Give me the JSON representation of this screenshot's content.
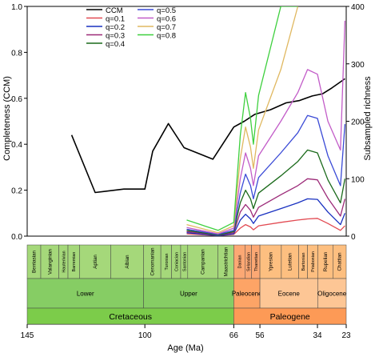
{
  "chart_data": {
    "type": "line",
    "xlabel": "Age (Ma)",
    "ylabel_left": "Completeness (CCM)",
    "ylabel_right": "Subsampled richness",
    "x_ticks": [
      145,
      100,
      66,
      56,
      34,
      23
    ],
    "x_range": [
      145,
      23
    ],
    "y_left_ticks": [
      "0.0",
      "0.2",
      "0.4",
      "0.6",
      "0.8",
      "1.0"
    ],
    "y_left_range": [
      0,
      1
    ],
    "y_right_ticks": [
      "0",
      "100",
      "200",
      "300",
      "400"
    ],
    "y_right_range": [
      0,
      400
    ],
    "legend_position": "top-left",
    "series": [
      {
        "name": "CCM",
        "axis": "left",
        "color": "#000000",
        "x": [
          128,
          119,
          108,
          100,
          97,
          91,
          85,
          74,
          66,
          62,
          58,
          52,
          46,
          41,
          36,
          32,
          28.5,
          23.5
        ],
        "y": [
          0.44,
          0.19,
          0.205,
          0.205,
          0.37,
          0.49,
          0.385,
          0.335,
          0.475,
          0.5,
          0.53,
          0.55,
          0.58,
          0.59,
          0.61,
          0.62,
          0.645,
          0.685
        ]
      },
      {
        "name": "q=0.1",
        "axis": "right",
        "color": "#e24a52",
        "x": [
          84,
          72,
          66,
          63.5,
          61.5,
          59.6,
          58.5,
          56.5,
          48,
          41.5,
          37.8,
          34,
          30,
          25.2,
          23.5
        ],
        "y": [
          4,
          1,
          3,
          14,
          20,
          16,
          11,
          18,
          24,
          28,
          30,
          31,
          22,
          10,
          18
        ]
      },
      {
        "name": "q=0.2",
        "axis": "right",
        "color": "#1830c0",
        "x": [
          84,
          72,
          66,
          63.5,
          61.5,
          59.6,
          58.5,
          56.5,
          48,
          41.5,
          37.8,
          34,
          30,
          25.2,
          23.5
        ],
        "y": [
          6,
          1,
          4,
          28,
          38,
          30,
          22,
          35,
          48,
          58,
          65,
          64,
          42,
          20,
          40
        ]
      },
      {
        "name": "q=0.3",
        "axis": "right",
        "color": "#9c2a78",
        "x": [
          84,
          72,
          66,
          63.5,
          61.5,
          59.6,
          58.5,
          56.5,
          48,
          41.5,
          37.8,
          34,
          30,
          25.2,
          23.5
        ],
        "y": [
          8,
          2,
          6,
          42,
          55,
          45,
          33,
          50,
          72,
          88,
          100,
          98,
          66,
          35,
          65
        ]
      },
      {
        "name": "q=0.4",
        "axis": "right",
        "color": "#1a6a1a",
        "x": [
          84,
          72,
          66,
          63.5,
          61.5,
          59.6,
          58.5,
          56.5,
          48,
          41.5,
          37.8,
          34,
          30,
          25.2,
          23.5
        ],
        "y": [
          10,
          2,
          8,
          58,
          80,
          65,
          48,
          75,
          105,
          130,
          150,
          145,
          98,
          58,
          100
        ]
      },
      {
        "name": "q=0.5",
        "axis": "right",
        "color": "#3a4ad6",
        "x": [
          84,
          72,
          66,
          63.5,
          61.5,
          59.6,
          58.5,
          56.5,
          48,
          41.5,
          37.8,
          34,
          30,
          25.2,
          23.5
        ],
        "y": [
          12,
          3,
          10,
          75,
          108,
          88,
          65,
          102,
          145,
          180,
          210,
          205,
          140,
          88,
          195
        ]
      },
      {
        "name": "q=0.6",
        "axis": "right",
        "color": "#c25cc8",
        "x": [
          84,
          72,
          66,
          63.5,
          61.5,
          59.6,
          58.5,
          56.5,
          48,
          41.5,
          37.8,
          34,
          30,
          25.2,
          23.5
        ],
        "y": [
          15,
          4,
          14,
          100,
          145,
          118,
          88,
          140,
          200,
          250,
          290,
          282,
          200,
          150,
          375
        ]
      },
      {
        "name": "q=0.7",
        "axis": "right",
        "color": "#e0b860",
        "x": [
          84,
          72,
          66,
          63.5,
          61.5,
          59.6,
          58.5,
          56.5,
          48,
          41.5
        ],
        "y": [
          20,
          6,
          18,
          135,
          190,
          155,
          118,
          185,
          290,
          400
        ]
      },
      {
        "name": "q=0.8",
        "axis": "right",
        "color": "#3ed03e",
        "x": [
          84,
          72,
          66,
          63.5,
          61.5,
          59.6,
          58.5,
          56.5,
          48,
          41.5
        ],
        "y": [
          28,
          10,
          24,
          175,
          250,
          205,
          160,
          245,
          400,
          400
        ]
      }
    ]
  },
  "timescale": {
    "stages": [
      {
        "name": "Berriasian",
        "start": 145,
        "end": 139.8
      },
      {
        "name": "Valanginian",
        "start": 139.8,
        "end": 132.9
      },
      {
        "name": "Hauterivian",
        "start": 132.9,
        "end": 129.4
      },
      {
        "name": "Barremian",
        "start": 129.4,
        "end": 125
      },
      {
        "name": "Aptian",
        "start": 125,
        "end": 113
      },
      {
        "name": "Albian",
        "start": 113,
        "end": 100.5
      },
      {
        "name": "Cenomanian",
        "start": 100.5,
        "end": 93.9
      },
      {
        "name": "Turonian",
        "start": 93.9,
        "end": 89.8
      },
      {
        "name": "Coniacian",
        "start": 89.8,
        "end": 86.3
      },
      {
        "name": "Santonian",
        "start": 86.3,
        "end": 83.6
      },
      {
        "name": "Campanian",
        "start": 83.6,
        "end": 72.1
      },
      {
        "name": "Maastrichtian",
        "start": 72.1,
        "end": 66
      },
      {
        "name": "Danian",
        "start": 66,
        "end": 61.6
      },
      {
        "name": "Selandian",
        "start": 61.6,
        "end": 59.2
      },
      {
        "name": "Thanetian",
        "start": 59.2,
        "end": 56
      },
      {
        "name": "Ypresian",
        "start": 56,
        "end": 47.8
      },
      {
        "name": "Lutetian",
        "start": 47.8,
        "end": 41.2
      },
      {
        "name": "Bartonian",
        "start": 41.2,
        "end": 37.8
      },
      {
        "name": "Priabonian",
        "start": 37.8,
        "end": 33.9
      },
      {
        "name": "Rupelian",
        "start": 33.9,
        "end": 28.1
      },
      {
        "name": "Chattian",
        "start": 28.1,
        "end": 23
      }
    ],
    "epochs": [
      {
        "name": "Lower",
        "start": 145,
        "end": 100.5
      },
      {
        "name": "Upper",
        "start": 100.5,
        "end": 66
      },
      {
        "name": "Paleocene",
        "start": 66,
        "end": 56
      },
      {
        "name": "Eocene",
        "start": 56,
        "end": 33.9
      },
      {
        "name": "Oligocene",
        "start": 33.9,
        "end": 23
      }
    ],
    "periods": [
      {
        "name": "Cretaceous",
        "start": 145,
        "end": 66
      },
      {
        "name": "Paleogene",
        "start": 66,
        "end": 23
      }
    ],
    "colors": {
      "cretaceous_stage": "#a5d87a",
      "cretaceous_epoch": "#86cd64",
      "cretaceous_period": "#7ccc4a",
      "paleogene_stage": "#fdbf80",
      "paleocene_stage": "#fca874",
      "paleogene_epoch": "#fdc695",
      "paleocene_epoch": "#fda466",
      "paleogene_period": "#fd9a56"
    }
  }
}
